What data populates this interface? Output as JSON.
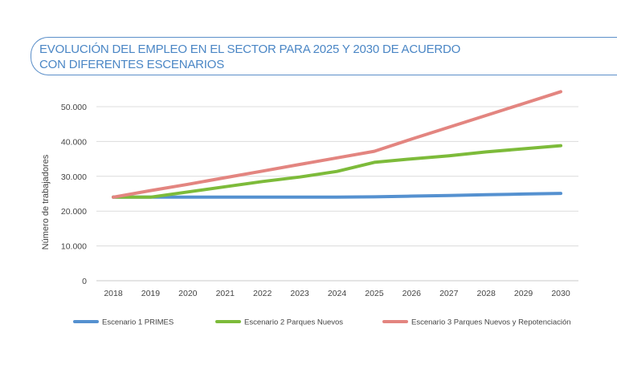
{
  "chart_data": {
    "type": "line",
    "title": "EVOLUCIÓN DEL EMPLEO EN EL SECTOR PARA 2025 Y 2030 DE ACUERDO CON DIFERENTES ESCENARIOS",
    "title_lines": [
      "EVOLUCIÓN DEL EMPLEO EN EL SECTOR PARA 2025 Y 2030 DE ACUERDO",
      "CON DIFERENTES ESCENARIOS"
    ],
    "xlabel": "",
    "ylabel": "Número de trabajadores",
    "x": [
      "2018",
      "2019",
      "2020",
      "2021",
      "2022",
      "2023",
      "2024",
      "2025",
      "2026",
      "2027",
      "2028",
      "2029",
      "2030"
    ],
    "ylim": [
      0,
      50000
    ],
    "yticks": [
      0,
      10000,
      20000,
      30000,
      40000,
      50000
    ],
    "ytick_labels": [
      "0",
      "10.000",
      "20.000",
      "30.000",
      "40.000",
      "50.000"
    ],
    "grid": true,
    "legend_position": "bottom",
    "series": [
      {
        "name": "Escenario 1 PRIMES",
        "color": "#5591d0",
        "values": [
          24000,
          24000,
          24000,
          24000,
          24000,
          24000,
          24000,
          24100,
          24300,
          24500,
          24700,
          24900,
          25100
        ]
      },
      {
        "name": "Escenario 2 Parques Nuevos",
        "color": "#7dbb3a",
        "values": [
          24000,
          24000,
          25500,
          27000,
          28500,
          29800,
          31400,
          34000,
          35000,
          35900,
          37000,
          37900,
          38800
        ]
      },
      {
        "name": "Escenario 3 Parques Nuevos y Repotenciación",
        "color": "#e38580",
        "values": [
          24000,
          25900,
          27700,
          29600,
          31500,
          33400,
          35300,
          37200,
          40700,
          44100,
          47500,
          50900,
          54300
        ]
      }
    ]
  }
}
